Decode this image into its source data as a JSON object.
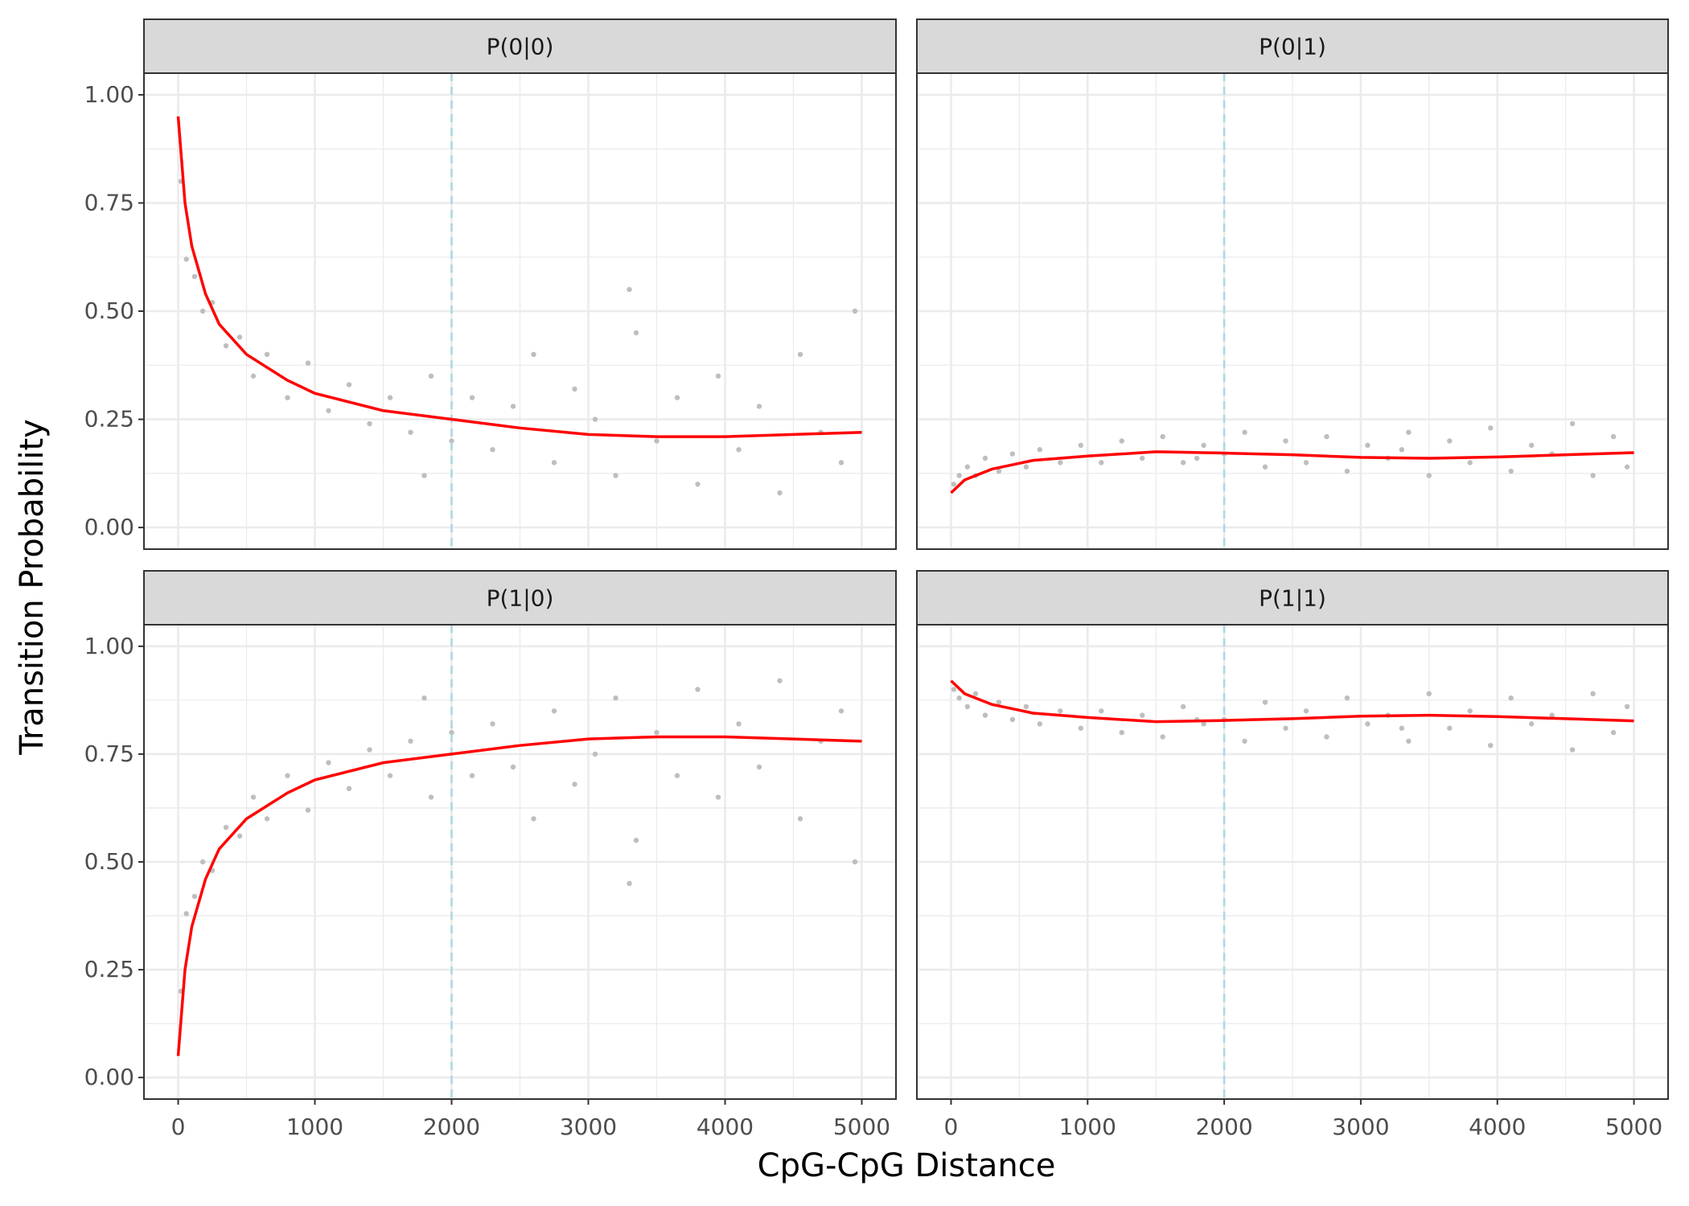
{
  "xlabel": "CpG-CpG Distance",
  "ylabel": "Transition Probability",
  "chart_data": [
    {
      "type": "scatter",
      "title": "P(0|0)",
      "xlim": [
        -250,
        5250
      ],
      "ylim": [
        -0.05,
        1.05
      ],
      "xticks": [
        0,
        1000,
        2000,
        3000,
        4000,
        5000
      ],
      "yticks": [
        {
          "value": 0,
          "label": "0.00"
        },
        {
          "value": 0.25,
          "label": "0.25"
        },
        {
          "value": 0.5,
          "label": "0.50"
        },
        {
          "value": 0.75,
          "label": "0.75"
        },
        {
          "value": 1,
          "label": "1.00"
        }
      ],
      "grid": true,
      "vline": {
        "value": 2000,
        "color": "#add8e6"
      },
      "points": {
        "color": "#bebebe",
        "x": [
          20,
          60,
          120,
          180,
          250,
          350,
          450,
          550,
          650,
          800,
          950,
          1100,
          1250,
          1400,
          1550,
          1700,
          1850,
          2000,
          2150,
          2300,
          2450,
          2600,
          2750,
          2900,
          3050,
          3200,
          3350,
          3500,
          3650,
          3800,
          3950,
          4100,
          4250,
          4400,
          4550,
          4700,
          4850,
          4950,
          1800,
          3300
        ],
        "y": [
          0.8,
          0.62,
          0.58,
          0.5,
          0.52,
          0.42,
          0.44,
          0.35,
          0.4,
          0.3,
          0.38,
          0.27,
          0.33,
          0.24,
          0.3,
          0.22,
          0.35,
          0.2,
          0.3,
          0.18,
          0.28,
          0.4,
          0.15,
          0.32,
          0.25,
          0.12,
          0.45,
          0.2,
          0.3,
          0.1,
          0.35,
          0.18,
          0.28,
          0.08,
          0.4,
          0.22,
          0.15,
          0.5,
          0.12,
          0.55
        ]
      },
      "smooth": {
        "color": "#ff0000",
        "x": [
          0,
          50,
          100,
          200,
          300,
          500,
          800,
          1000,
          1500,
          2000,
          2500,
          3000,
          3500,
          4000,
          4500,
          5000
        ],
        "y": [
          0.95,
          0.75,
          0.65,
          0.54,
          0.47,
          0.4,
          0.34,
          0.31,
          0.27,
          0.25,
          0.23,
          0.215,
          0.21,
          0.21,
          0.215,
          0.22
        ]
      }
    },
    {
      "type": "scatter",
      "title": "P(0|1)",
      "xlim": [
        -250,
        5250
      ],
      "ylim": [
        -0.05,
        1.05
      ],
      "xticks": [
        0,
        1000,
        2000,
        3000,
        4000,
        5000
      ],
      "yticks": [
        {
          "value": 0,
          "label": "0.00"
        },
        {
          "value": 0.25,
          "label": "0.25"
        },
        {
          "value": 0.5,
          "label": "0.50"
        },
        {
          "value": 0.75,
          "label": "0.75"
        },
        {
          "value": 1,
          "label": "1.00"
        }
      ],
      "grid": true,
      "vline": {
        "value": 2000,
        "color": "#add8e6"
      },
      "points": {
        "color": "#bebebe",
        "x": [
          20,
          60,
          120,
          180,
          250,
          350,
          450,
          550,
          650,
          800,
          950,
          1100,
          1250,
          1400,
          1550,
          1700,
          1850,
          2000,
          2150,
          2300,
          2450,
          2600,
          2750,
          2900,
          3050,
          3200,
          3350,
          3500,
          3650,
          3800,
          3950,
          4100,
          4250,
          4400,
          4550,
          4700,
          4850,
          4950,
          1800,
          3300
        ],
        "y": [
          0.1,
          0.12,
          0.14,
          0.12,
          0.16,
          0.13,
          0.17,
          0.14,
          0.18,
          0.15,
          0.19,
          0.15,
          0.2,
          0.16,
          0.21,
          0.15,
          0.19,
          0.17,
          0.22,
          0.14,
          0.2,
          0.15,
          0.21,
          0.13,
          0.19,
          0.16,
          0.22,
          0.12,
          0.2,
          0.15,
          0.23,
          0.13,
          0.19,
          0.17,
          0.24,
          0.12,
          0.21,
          0.14,
          0.16,
          0.18
        ]
      },
      "smooth": {
        "color": "#ff0000",
        "x": [
          0,
          100,
          300,
          600,
          1000,
          1500,
          2000,
          2500,
          3000,
          3500,
          4000,
          4500,
          5000
        ],
        "y": [
          0.08,
          0.11,
          0.135,
          0.155,
          0.165,
          0.175,
          0.172,
          0.168,
          0.162,
          0.16,
          0.163,
          0.168,
          0.173
        ]
      }
    },
    {
      "type": "scatter",
      "title": "P(1|0)",
      "xlim": [
        -250,
        5250
      ],
      "ylim": [
        -0.05,
        1.05
      ],
      "xticks": [
        0,
        1000,
        2000,
        3000,
        4000,
        5000
      ],
      "yticks": [
        {
          "value": 0,
          "label": "0.00"
        },
        {
          "value": 0.25,
          "label": "0.25"
        },
        {
          "value": 0.5,
          "label": "0.50"
        },
        {
          "value": 0.75,
          "label": "0.75"
        },
        {
          "value": 1,
          "label": "1.00"
        }
      ],
      "grid": true,
      "vline": {
        "value": 2000,
        "color": "#add8e6"
      },
      "points": {
        "color": "#bebebe",
        "x": [
          20,
          60,
          120,
          180,
          250,
          350,
          450,
          550,
          650,
          800,
          950,
          1100,
          1250,
          1400,
          1550,
          1700,
          1850,
          2000,
          2150,
          2300,
          2450,
          2600,
          2750,
          2900,
          3050,
          3200,
          3350,
          3500,
          3650,
          3800,
          3950,
          4100,
          4250,
          4400,
          4550,
          4700,
          4850,
          4950,
          1800,
          3300
        ],
        "y": [
          0.2,
          0.38,
          0.42,
          0.5,
          0.48,
          0.58,
          0.56,
          0.65,
          0.6,
          0.7,
          0.62,
          0.73,
          0.67,
          0.76,
          0.7,
          0.78,
          0.65,
          0.8,
          0.7,
          0.82,
          0.72,
          0.6,
          0.85,
          0.68,
          0.75,
          0.88,
          0.55,
          0.8,
          0.7,
          0.9,
          0.65,
          0.82,
          0.72,
          0.92,
          0.6,
          0.78,
          0.85,
          0.5,
          0.88,
          0.45
        ]
      },
      "smooth": {
        "color": "#ff0000",
        "x": [
          0,
          50,
          100,
          200,
          300,
          500,
          800,
          1000,
          1500,
          2000,
          2500,
          3000,
          3500,
          4000,
          4500,
          5000
        ],
        "y": [
          0.05,
          0.25,
          0.35,
          0.46,
          0.53,
          0.6,
          0.66,
          0.69,
          0.73,
          0.75,
          0.77,
          0.785,
          0.79,
          0.79,
          0.785,
          0.78
        ]
      }
    },
    {
      "type": "scatter",
      "title": "P(1|1)",
      "xlim": [
        -250,
        5250
      ],
      "ylim": [
        -0.05,
        1.05
      ],
      "xticks": [
        0,
        1000,
        2000,
        3000,
        4000,
        5000
      ],
      "yticks": [
        {
          "value": 0,
          "label": "0.00"
        },
        {
          "value": 0.25,
          "label": "0.25"
        },
        {
          "value": 0.5,
          "label": "0.50"
        },
        {
          "value": 0.75,
          "label": "0.75"
        },
        {
          "value": 1,
          "label": "1.00"
        }
      ],
      "grid": true,
      "vline": {
        "value": 2000,
        "color": "#add8e6"
      },
      "points": {
        "color": "#bebebe",
        "x": [
          20,
          60,
          120,
          180,
          250,
          350,
          450,
          550,
          650,
          800,
          950,
          1100,
          1250,
          1400,
          1550,
          1700,
          1850,
          2000,
          2150,
          2300,
          2450,
          2600,
          2750,
          2900,
          3050,
          3200,
          3350,
          3500,
          3650,
          3800,
          3950,
          4100,
          4250,
          4400,
          4550,
          4700,
          4850,
          4950,
          1800,
          3300
        ],
        "y": [
          0.9,
          0.88,
          0.86,
          0.89,
          0.84,
          0.87,
          0.83,
          0.86,
          0.82,
          0.85,
          0.81,
          0.85,
          0.8,
          0.84,
          0.79,
          0.86,
          0.82,
          0.83,
          0.78,
          0.87,
          0.81,
          0.85,
          0.79,
          0.88,
          0.82,
          0.84,
          0.78,
          0.89,
          0.81,
          0.85,
          0.77,
          0.88,
          0.82,
          0.84,
          0.76,
          0.89,
          0.8,
          0.86,
          0.83,
          0.81
        ]
      },
      "smooth": {
        "color": "#ff0000",
        "x": [
          0,
          100,
          300,
          600,
          1000,
          1500,
          2000,
          2500,
          3000,
          3500,
          4000,
          4500,
          5000
        ],
        "y": [
          0.92,
          0.89,
          0.865,
          0.845,
          0.835,
          0.825,
          0.828,
          0.832,
          0.838,
          0.84,
          0.837,
          0.832,
          0.827
        ]
      }
    }
  ]
}
